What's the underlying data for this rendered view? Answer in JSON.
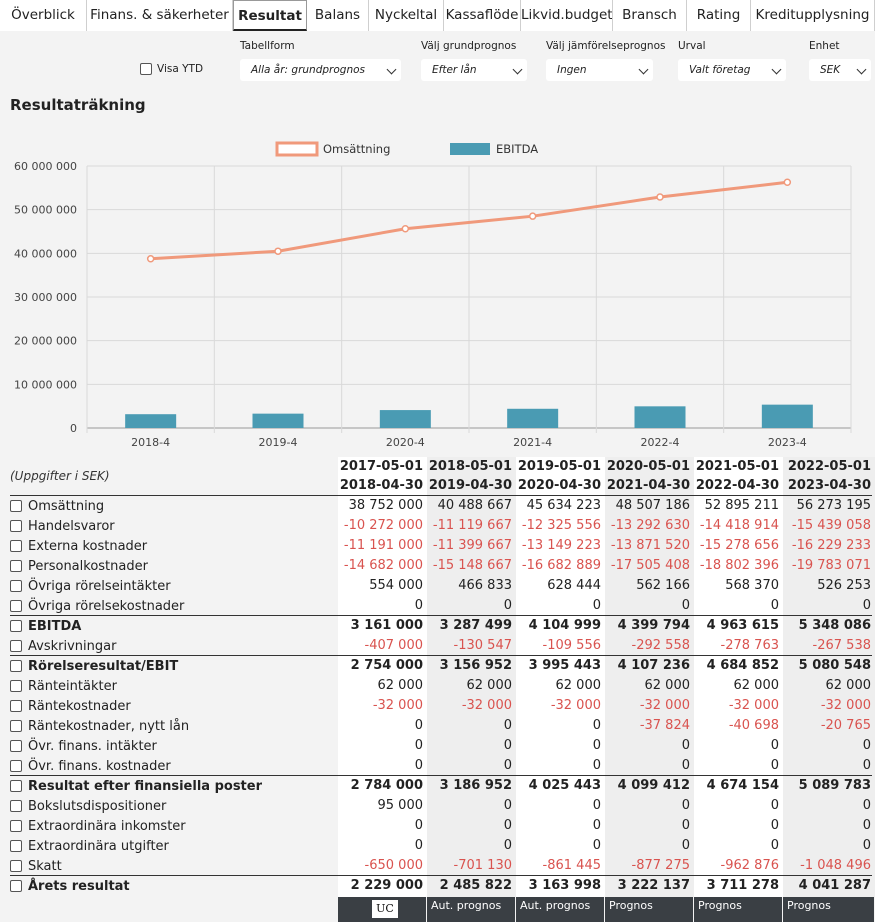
{
  "tabs": [
    "Överblick",
    "Finans. & säkerheter",
    "Resultat",
    "Balans",
    "Nyckeltal",
    "Kassaflöde",
    "Likvid.budget",
    "Bransch",
    "Rating",
    "Kreditupplysning"
  ],
  "active_tab": "Resultat",
  "controls": {
    "ytd_label": "Visa YTD",
    "tabellform": {
      "label": "Tabellform",
      "value": "Alla år: grundprognos"
    },
    "grundprognos": {
      "label": "Välj grundprognos",
      "value": "Efter lån"
    },
    "jamforelse": {
      "label": "Välj jämförelseprognos",
      "value": "Ingen"
    },
    "urval": {
      "label": "Urval",
      "value": "Valt företag"
    },
    "enhet": {
      "label": "Enhet",
      "value": "SEK"
    }
  },
  "section_title": "Resultaträkning",
  "chart_data": {
    "type": "bar+line",
    "categories": [
      "2018-4",
      "2019-4",
      "2020-4",
      "2021-4",
      "2022-4",
      "2023-4"
    ],
    "series": [
      {
        "name": "Omsättning",
        "type": "line",
        "color": "#f0997b",
        "values": [
          38752000,
          40488667,
          45634223,
          48507186,
          52895211,
          56273195
        ]
      },
      {
        "name": "EBITDA",
        "type": "bar",
        "color": "#4a9bb3",
        "values": [
          3161000,
          3287499,
          4104999,
          4399794,
          4963615,
          5348086
        ]
      }
    ],
    "y_ticks": [
      "0",
      "10 000 000",
      "20 000 000",
      "30 000 000",
      "40 000 000",
      "50 000 000",
      "60 000 000"
    ],
    "ylim": [
      0,
      60000000
    ],
    "grid": true,
    "legend": "top"
  },
  "table": {
    "unit_note": "(Uppgifter i SEK)",
    "periods": [
      {
        "from": "2017-05-01",
        "to": "2018-04-30",
        "source": ""
      },
      {
        "from": "2018-05-01",
        "to": "2019-04-30",
        "source": "Aut. prognos"
      },
      {
        "from": "2019-05-01",
        "to": "2020-04-30",
        "source": "Aut. prognos"
      },
      {
        "from": "2020-05-01",
        "to": "2021-04-30",
        "source": "Prognos"
      },
      {
        "from": "2021-05-01",
        "to": "2022-04-30",
        "source": "Prognos"
      },
      {
        "from": "2022-05-01",
        "to": "2023-04-30",
        "source": "Prognos"
      }
    ],
    "first_source_badge": "UC",
    "rows": [
      {
        "label": "Omsättning",
        "bold": false,
        "rule": false,
        "values": [
          "38 752 000",
          "40 488 667",
          "45 634 223",
          "48 507 186",
          "52 895 211",
          "56 273 195"
        ]
      },
      {
        "label": "Handelsvaror",
        "bold": false,
        "rule": false,
        "values": [
          "-10 272 000",
          "-11 119 667",
          "-12 325 556",
          "-13 292 630",
          "-14 418 914",
          "-15 439 058"
        ]
      },
      {
        "label": "Externa kostnader",
        "bold": false,
        "rule": false,
        "values": [
          "-11 191 000",
          "-11 399 667",
          "-13 149 223",
          "-13 871 520",
          "-15 278 656",
          "-16 229 233"
        ]
      },
      {
        "label": "Personalkostnader",
        "bold": false,
        "rule": false,
        "values": [
          "-14 682 000",
          "-15 148 667",
          "-16 682 889",
          "-17 505 408",
          "-18 802 396",
          "-19 783 071"
        ]
      },
      {
        "label": "Övriga rörelseintäkter",
        "bold": false,
        "rule": false,
        "values": [
          "554 000",
          "466 833",
          "628 444",
          "562 166",
          "568 370",
          "526 253"
        ]
      },
      {
        "label": "Övriga rörelsekostnader",
        "bold": false,
        "rule": false,
        "values": [
          "0",
          "0",
          "0",
          "0",
          "0",
          "0"
        ]
      },
      {
        "label": "EBITDA",
        "bold": true,
        "rule": true,
        "values": [
          "3 161 000",
          "3 287 499",
          "4 104 999",
          "4 399 794",
          "4 963 615",
          "5 348 086"
        ]
      },
      {
        "label": "Avskrivningar",
        "bold": false,
        "rule": false,
        "values": [
          "-407 000",
          "-130 547",
          "-109 556",
          "-292 558",
          "-278 763",
          "-267 538"
        ]
      },
      {
        "label": "Rörelseresultat/EBIT",
        "bold": true,
        "rule": true,
        "values": [
          "2 754 000",
          "3 156 952",
          "3 995 443",
          "4 107 236",
          "4 684 852",
          "5 080 548"
        ]
      },
      {
        "label": "Ränteintäkter",
        "bold": false,
        "rule": false,
        "values": [
          "62 000",
          "62 000",
          "62 000",
          "62 000",
          "62 000",
          "62 000"
        ]
      },
      {
        "label": "Räntekostnader",
        "bold": false,
        "rule": false,
        "values": [
          "-32 000",
          "-32 000",
          "-32 000",
          "-32 000",
          "-32 000",
          "-32 000"
        ]
      },
      {
        "label": "Räntekostnader, nytt lån",
        "bold": false,
        "rule": false,
        "values": [
          "0",
          "0",
          "0",
          "-37 824",
          "-40 698",
          "-20 765"
        ]
      },
      {
        "label": "Övr. finans. intäkter",
        "bold": false,
        "rule": false,
        "values": [
          "0",
          "0",
          "0",
          "0",
          "0",
          "0"
        ]
      },
      {
        "label": "Övr. finans. kostnader",
        "bold": false,
        "rule": false,
        "values": [
          "0",
          "0",
          "0",
          "0",
          "0",
          "0"
        ]
      },
      {
        "label": "Resultat efter finansiella poster",
        "bold": true,
        "rule": true,
        "values": [
          "2 784 000",
          "3 186 952",
          "4 025 443",
          "4 099 412",
          "4 674 154",
          "5 089 783"
        ]
      },
      {
        "label": "Bokslutsdispositioner",
        "bold": false,
        "rule": false,
        "values": [
          "95 000",
          "0",
          "0",
          "0",
          "0",
          "0"
        ]
      },
      {
        "label": "Extraordinära inkomster",
        "bold": false,
        "rule": false,
        "values": [
          "0",
          "0",
          "0",
          "0",
          "0",
          "0"
        ]
      },
      {
        "label": "Extraordinära utgifter",
        "bold": false,
        "rule": false,
        "values": [
          "0",
          "0",
          "0",
          "0",
          "0",
          "0"
        ]
      },
      {
        "label": "Skatt",
        "bold": false,
        "rule": false,
        "values": [
          "-650 000",
          "-701 130",
          "-861 445",
          "-877 275",
          "-962 876",
          "-1 048 496"
        ]
      },
      {
        "label": "Årets resultat",
        "bold": true,
        "rule": true,
        "values": [
          "2 229 000",
          "2 485 822",
          "3 163 998",
          "3 222 137",
          "3 711 278",
          "4 041 287"
        ]
      }
    ]
  }
}
